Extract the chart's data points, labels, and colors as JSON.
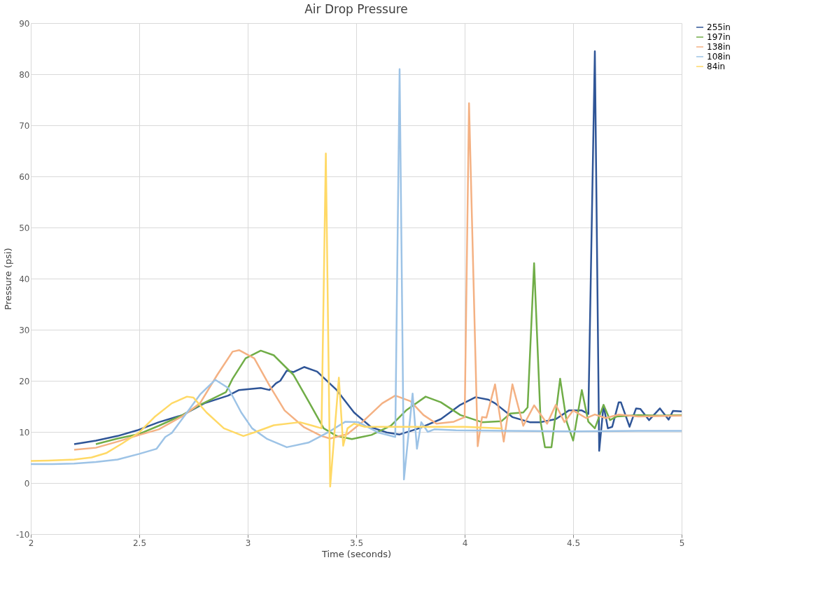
{
  "chart_data": {
    "type": "line",
    "title": "Air Drop Pressure",
    "xlabel": "Time (seconds)",
    "ylabel": "Pressure (psi)",
    "xlim": [
      2,
      5
    ],
    "xticks": [
      2,
      2.5,
      3,
      3.5,
      4,
      4.5,
      5
    ],
    "ylim": [
      -10,
      90
    ],
    "yticks": [
      -10,
      0,
      10,
      20,
      30,
      40,
      50,
      60,
      70,
      80,
      90
    ],
    "grid": true,
    "legend": "right",
    "marker": "none",
    "line_style": "solid",
    "series": [
      {
        "name": "255in",
        "color": "#2f5597",
        "x": [
          2.2,
          2.3,
          2.4,
          2.49,
          2.59,
          2.7,
          2.8,
          2.91,
          2.96,
          3.06,
          3.1,
          3.13,
          3.15,
          3.18,
          3.21,
          3.26,
          3.32,
          3.41,
          3.49,
          3.57,
          3.64,
          3.7,
          3.79,
          3.89,
          3.98,
          4.05,
          4.11,
          4.14,
          4.22,
          4.3,
          4.35,
          4.42,
          4.48,
          4.54,
          4.57,
          4.6,
          4.62,
          4.64,
          4.66,
          4.68,
          4.71,
          4.72,
          4.76,
          4.79,
          4.81,
          4.85,
          4.9,
          4.94,
          4.96,
          5.0
        ],
        "values": [
          7.6,
          8.3,
          9.2,
          10.3,
          11.9,
          13.3,
          15.6,
          17.1,
          18.2,
          18.6,
          18.2,
          19.5,
          20,
          22,
          21.7,
          22.7,
          21.8,
          18.2,
          13.8,
          10.9,
          9.9,
          9.5,
          10.7,
          12.5,
          15.3,
          16.8,
          16.3,
          15.6,
          12.9,
          11.9,
          11.9,
          12.5,
          14.2,
          14.2,
          13.5,
          84.5,
          6.3,
          15.2,
          10.7,
          11,
          15.8,
          15.8,
          11,
          14.6,
          14.5,
          12.3,
          14.6,
          12.4,
          14.1,
          14
        ]
      },
      {
        "name": "197in",
        "color": "#70ad47",
        "x": [
          2.3,
          2.4,
          2.5,
          2.59,
          2.7,
          2.78,
          2.9,
          2.93,
          2.99,
          3.06,
          3.12,
          3.21,
          3.28,
          3.35,
          3.41,
          3.48,
          3.57,
          3.66,
          3.73,
          3.82,
          3.89,
          3.98,
          4.08,
          4.17,
          4.21,
          4.27,
          4.29,
          4.32,
          4.35,
          4.37,
          4.4,
          4.44,
          4.47,
          4.5,
          4.54,
          4.57,
          4.6,
          4.64,
          4.67,
          4.7,
          4.8,
          4.9,
          5.0
        ],
        "values": [
          7.6,
          8.7,
          9.6,
          11.2,
          13.3,
          15.3,
          17.8,
          20.4,
          24.4,
          25.9,
          25,
          21.2,
          16,
          10.7,
          9.2,
          8.6,
          9.4,
          11.2,
          14.2,
          16.9,
          15.8,
          13.3,
          11.9,
          12.1,
          13.6,
          13.8,
          14.8,
          43,
          12,
          7,
          7,
          20.4,
          12,
          8.3,
          18.2,
          12,
          10.7,
          15.3,
          12.3,
          13,
          13.3,
          13.2,
          13.3
        ]
      },
      {
        "name": "138in",
        "color": "#f4b183",
        "x": [
          2.2,
          2.3,
          2.4,
          2.5,
          2.59,
          2.7,
          2.78,
          2.86,
          2.93,
          2.96,
          3.03,
          3.1,
          3.17,
          3.26,
          3.34,
          3.38,
          3.46,
          3.53,
          3.62,
          3.68,
          3.75,
          3.81,
          3.87,
          3.95,
          4.0,
          4.02,
          4.06,
          4.08,
          4.1,
          4.14,
          4.18,
          4.22,
          4.27,
          4.32,
          4.38,
          4.42,
          4.46,
          4.5,
          4.56,
          4.6,
          4.65,
          4.71,
          4.8,
          5.0
        ],
        "values": [
          6.5,
          6.9,
          8.1,
          9.4,
          10.5,
          13.1,
          15.6,
          21.2,
          25.7,
          26,
          24.4,
          19.1,
          14.2,
          10.9,
          9.2,
          8.7,
          9.6,
          12,
          15.6,
          17.1,
          16,
          13.3,
          11.6,
          12,
          12.9,
          74.3,
          7.2,
          12.9,
          12.8,
          19.3,
          8.1,
          19.3,
          11.2,
          15.2,
          11.6,
          15.3,
          11.9,
          14.2,
          12.7,
          13.4,
          12.7,
          13.4,
          13,
          13.2
        ]
      },
      {
        "name": "108in",
        "color": "#9dc3e6",
        "x": [
          2.0,
          2.1,
          2.2,
          2.3,
          2.4,
          2.5,
          2.58,
          2.62,
          2.65,
          2.72,
          2.78,
          2.85,
          2.91,
          2.97,
          3.02,
          3.09,
          3.18,
          3.28,
          3.37,
          3.45,
          3.51,
          3.6,
          3.68,
          3.7,
          3.72,
          3.76,
          3.78,
          3.8,
          3.83,
          3.86,
          3.96,
          4.2,
          4.5,
          4.8,
          5.0
        ],
        "values": [
          3.7,
          3.7,
          3.8,
          4.1,
          4.6,
          5.7,
          6.7,
          9,
          9.8,
          13.8,
          17.3,
          20.2,
          18.6,
          13.8,
          10.7,
          8.6,
          7,
          7.9,
          9.9,
          12,
          11.9,
          9.9,
          9,
          81,
          0.7,
          17.5,
          6.7,
          11.9,
          10,
          10.5,
          10.3,
          10.2,
          10.1,
          10.2,
          10.2
        ]
      },
      {
        "name": "84in",
        "color": "#ffd966",
        "x": [
          2.0,
          2.08,
          2.2,
          2.28,
          2.35,
          2.42,
          2.5,
          2.57,
          2.65,
          2.72,
          2.75,
          2.81,
          2.89,
          2.98,
          3.03,
          3.12,
          3.24,
          3.3,
          3.34,
          3.36,
          3.38,
          3.42,
          3.44,
          3.46,
          3.49,
          3.54,
          3.7,
          4.0,
          4.17
        ],
        "values": [
          4.3,
          4.4,
          4.6,
          5,
          5.9,
          7.7,
          9.9,
          12.9,
          15.6,
          16.9,
          16.7,
          13.8,
          10.7,
          9.2,
          9.9,
          11.3,
          11.9,
          11.2,
          10.7,
          64.5,
          -0.7,
          20.6,
          7.3,
          10.7,
          11.6,
          11,
          11,
          11,
          10.7
        ]
      }
    ]
  }
}
